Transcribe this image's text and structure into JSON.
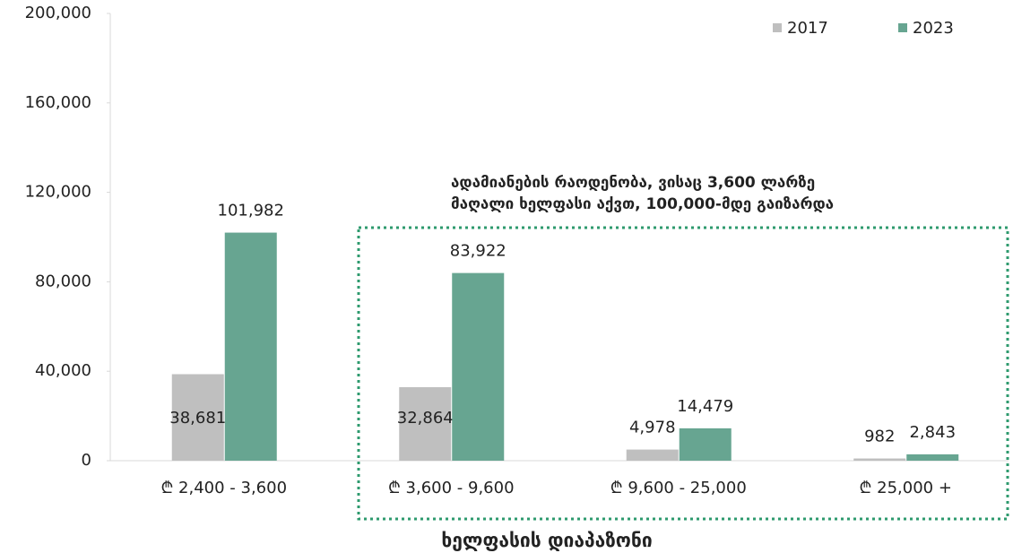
{
  "chart_data": {
    "type": "bar",
    "annotation": [
      "ადამიანების რაოდენობა, ვისაც 3,600 ლარზე",
      "მაღალი ხელფასი აქვთ, 100,000-მდე გაიზარდა"
    ],
    "x_label": "ხელფასის დიაპაზონი",
    "categories": [
      "₾ 2,400 - 3,600",
      "₾ 3,600 - 9,600",
      "₾ 9,600 - 25,000",
      "₾ 25,000 +"
    ],
    "series": [
      {
        "name": "2017",
        "color": "#bfbfbf",
        "values": [
          38681,
          32864,
          4978,
          982
        ],
        "value_labels": [
          "38,681",
          "32,864",
          "4,978",
          "982"
        ]
      },
      {
        "name": "2023",
        "color": "#67a591",
        "values": [
          101982,
          83922,
          14479,
          2843
        ],
        "value_labels": [
          "101,982",
          "83,922",
          "14,479",
          "2,843"
        ]
      }
    ],
    "ylim": [
      0,
      200000
    ],
    "yticks": [
      0,
      {
        "value": 40000,
        "label": "40,000"
      },
      {
        "value": 80000,
        "label": "80,000"
      },
      {
        "value": 120000,
        "label": "120,000"
      },
      {
        "value": 160000,
        "label": "160,000"
      },
      {
        "value": 200000,
        "label": "200,000"
      }
    ],
    "legend": "top-right"
  }
}
